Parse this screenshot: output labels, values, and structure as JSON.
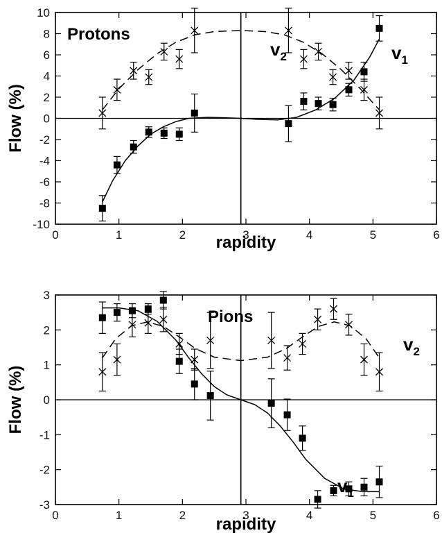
{
  "chart_data": [
    {
      "type": "scatter",
      "panel_label": "Protons",
      "xlabel": "rapidity",
      "ylabel": "Flow (%)",
      "xlim": [
        0,
        6
      ],
      "ylim": [
        -10,
        10
      ],
      "xticks": [
        0,
        1,
        2,
        3,
        4,
        5,
        6
      ],
      "yticks": [
        -10,
        -8,
        -6,
        -4,
        -2,
        0,
        2,
        4,
        6,
        8,
        10
      ],
      "grid": false,
      "reference_line_x": 2.92,
      "series": [
        {
          "name": "v1",
          "marker": "filled-square",
          "label_letter": "v",
          "label_sub": "1",
          "points": [
            {
              "x": 0.74,
              "y": -8.5,
              "err": 1.2
            },
            {
              "x": 0.97,
              "y": -4.4,
              "err": 0.8
            },
            {
              "x": 1.23,
              "y": -2.7,
              "err": 0.6
            },
            {
              "x": 1.47,
              "y": -1.3,
              "err": 0.5
            },
            {
              "x": 1.71,
              "y": -1.4,
              "err": 0.5
            },
            {
              "x": 1.95,
              "y": -1.5,
              "err": 0.6
            },
            {
              "x": 2.19,
              "y": 0.5,
              "err": 1.8
            },
            {
              "x": 3.67,
              "y": -0.5,
              "err": 1.7
            },
            {
              "x": 3.91,
              "y": 1.6,
              "err": 0.8
            },
            {
              "x": 4.14,
              "y": 1.4,
              "err": 0.6
            },
            {
              "x": 4.37,
              "y": 1.3,
              "err": 0.6
            },
            {
              "x": 4.62,
              "y": 2.7,
              "err": 0.6
            },
            {
              "x": 4.86,
              "y": 4.4,
              "err": 0.9
            },
            {
              "x": 5.1,
              "y": 8.5,
              "err": 1.2
            }
          ],
          "fit_style": "solid",
          "fit": [
            {
              "x": 0.74,
              "y": -7.9
            },
            {
              "x": 0.9,
              "y": -5.9
            },
            {
              "x": 1.1,
              "y": -4.0
            },
            {
              "x": 1.3,
              "y": -2.6
            },
            {
              "x": 1.5,
              "y": -1.5
            },
            {
              "x": 1.7,
              "y": -0.8
            },
            {
              "x": 1.9,
              "y": -0.3
            },
            {
              "x": 2.1,
              "y": 0.0
            },
            {
              "x": 2.4,
              "y": 0.1
            },
            {
              "x": 2.7,
              "y": 0.05
            },
            {
              "x": 2.92,
              "y": 0.0
            },
            {
              "x": 3.2,
              "y": -0.1
            },
            {
              "x": 3.5,
              "y": -0.15
            },
            {
              "x": 3.8,
              "y": 0.1
            },
            {
              "x": 4.1,
              "y": 0.8
            },
            {
              "x": 4.4,
              "y": 1.9
            },
            {
              "x": 4.7,
              "y": 3.6
            },
            {
              "x": 4.95,
              "y": 5.8
            },
            {
              "x": 5.1,
              "y": 7.5
            }
          ]
        },
        {
          "name": "v2",
          "marker": "x-cross",
          "label_letter": "v",
          "label_sub": "2",
          "points": [
            {
              "x": 0.74,
              "y": 0.5,
              "err": 1.5
            },
            {
              "x": 0.97,
              "y": 2.7,
              "err": 1.0
            },
            {
              "x": 1.23,
              "y": 4.5,
              "err": 0.8
            },
            {
              "x": 1.47,
              "y": 3.9,
              "err": 0.7
            },
            {
              "x": 1.71,
              "y": 6.3,
              "err": 0.8
            },
            {
              "x": 1.95,
              "y": 5.6,
              "err": 0.9
            },
            {
              "x": 2.19,
              "y": 8.3,
              "err": 2.1
            },
            {
              "x": 3.67,
              "y": 8.3,
              "err": 2.1
            },
            {
              "x": 3.91,
              "y": 5.6,
              "err": 0.9
            },
            {
              "x": 4.14,
              "y": 6.3,
              "err": 0.8
            },
            {
              "x": 4.37,
              "y": 3.9,
              "err": 0.7
            },
            {
              "x": 4.62,
              "y": 4.5,
              "err": 0.8
            },
            {
              "x": 4.86,
              "y": 2.7,
              "err": 1.0
            },
            {
              "x": 5.1,
              "y": 0.5,
              "err": 1.5
            }
          ],
          "fit_style": "dashed",
          "fit": [
            {
              "x": 0.74,
              "y": 0.8
            },
            {
              "x": 1.0,
              "y": 2.8
            },
            {
              "x": 1.3,
              "y": 4.6
            },
            {
              "x": 1.6,
              "y": 6.1
            },
            {
              "x": 1.9,
              "y": 7.2
            },
            {
              "x": 2.2,
              "y": 7.9
            },
            {
              "x": 2.5,
              "y": 8.2
            },
            {
              "x": 2.92,
              "y": 8.3
            },
            {
              "x": 3.3,
              "y": 8.2
            },
            {
              "x": 3.6,
              "y": 7.9
            },
            {
              "x": 3.9,
              "y": 7.2
            },
            {
              "x": 4.2,
              "y": 6.1
            },
            {
              "x": 4.5,
              "y": 4.6
            },
            {
              "x": 4.8,
              "y": 2.8
            },
            {
              "x": 5.1,
              "y": 0.8
            }
          ]
        }
      ]
    },
    {
      "type": "scatter",
      "panel_label": "Pions",
      "xlabel": "rapidity",
      "ylabel": "Flow (%)",
      "xlim": [
        0,
        6
      ],
      "ylim": [
        -3,
        3
      ],
      "xticks": [
        0,
        1,
        2,
        3,
        4,
        5,
        6
      ],
      "yticks": [
        -3,
        -2,
        -1,
        0,
        1,
        2,
        3
      ],
      "grid": false,
      "reference_line_x": 2.92,
      "series": [
        {
          "name": "v1",
          "marker": "filled-square",
          "label_letter": "v",
          "label_sub": "1",
          "points": [
            {
              "x": 0.74,
              "y": 2.35,
              "err": 0.45
            },
            {
              "x": 0.97,
              "y": 2.5,
              "err": 0.25
            },
            {
              "x": 1.21,
              "y": 2.55,
              "err": 0.2
            },
            {
              "x": 1.46,
              "y": 2.6,
              "err": 0.15
            },
            {
              "x": 1.7,
              "y": 2.85,
              "err": 0.25
            },
            {
              "x": 1.95,
              "y": 1.1,
              "err": 0.35
            },
            {
              "x": 2.19,
              "y": 0.45,
              "err": 0.45
            },
            {
              "x": 2.44,
              "y": 0.12,
              "err": 0.7
            },
            {
              "x": 3.4,
              "y": -0.1,
              "err": 0.7
            },
            {
              "x": 3.65,
              "y": -0.43,
              "err": 0.45
            },
            {
              "x": 3.89,
              "y": -1.1,
              "err": 0.35
            },
            {
              "x": 4.13,
              "y": -2.85,
              "err": 0.25
            },
            {
              "x": 4.38,
              "y": -2.6,
              "err": 0.15
            },
            {
              "x": 4.62,
              "y": -2.55,
              "err": 0.2
            },
            {
              "x": 4.86,
              "y": -2.5,
              "err": 0.25
            },
            {
              "x": 5.1,
              "y": -2.35,
              "err": 0.45
            }
          ],
          "fit_style": "solid",
          "fit": [
            {
              "x": 0.74,
              "y": 2.63
            },
            {
              "x": 1.0,
              "y": 2.63
            },
            {
              "x": 1.3,
              "y": 2.55
            },
            {
              "x": 1.6,
              "y": 2.25
            },
            {
              "x": 1.9,
              "y": 1.7
            },
            {
              "x": 2.1,
              "y": 1.2
            },
            {
              "x": 2.3,
              "y": 0.75
            },
            {
              "x": 2.5,
              "y": 0.38
            },
            {
              "x": 2.7,
              "y": 0.14
            },
            {
              "x": 2.92,
              "y": 0.0
            },
            {
              "x": 3.14,
              "y": -0.14
            },
            {
              "x": 3.34,
              "y": -0.38
            },
            {
              "x": 3.54,
              "y": -0.75
            },
            {
              "x": 3.74,
              "y": -1.2
            },
            {
              "x": 3.94,
              "y": -1.7
            },
            {
              "x": 4.24,
              "y": -2.25
            },
            {
              "x": 4.54,
              "y": -2.55
            },
            {
              "x": 4.84,
              "y": -2.63
            },
            {
              "x": 5.1,
              "y": -2.63
            }
          ]
        },
        {
          "name": "v2",
          "marker": "x-cross",
          "label_letter": "v",
          "label_sub": "2",
          "points": [
            {
              "x": 0.74,
              "y": 0.8,
              "err": 0.55
            },
            {
              "x": 0.97,
              "y": 1.15,
              "err": 0.45
            },
            {
              "x": 1.21,
              "y": 2.15,
              "err": 0.35
            },
            {
              "x": 1.46,
              "y": 2.2,
              "err": 0.3
            },
            {
              "x": 1.7,
              "y": 2.3,
              "err": 0.35
            },
            {
              "x": 1.95,
              "y": 1.6,
              "err": 0.3
            },
            {
              "x": 2.19,
              "y": 1.15,
              "err": 0.3
            },
            {
              "x": 2.44,
              "y": 1.7,
              "err": 0.8
            },
            {
              "x": 3.4,
              "y": 1.7,
              "err": 0.8
            },
            {
              "x": 3.65,
              "y": 1.2,
              "err": 0.35
            },
            {
              "x": 3.89,
              "y": 1.6,
              "err": 0.3
            },
            {
              "x": 4.13,
              "y": 2.3,
              "err": 0.3
            },
            {
              "x": 4.38,
              "y": 2.6,
              "err": 0.3
            },
            {
              "x": 4.62,
              "y": 2.15,
              "err": 0.3
            },
            {
              "x": 4.86,
              "y": 1.15,
              "err": 0.45
            },
            {
              "x": 5.1,
              "y": 0.8,
              "err": 0.55
            }
          ],
          "fit_style": "dashed",
          "fit": [
            {
              "x": 0.74,
              "y": 1.2
            },
            {
              "x": 0.95,
              "y": 1.75
            },
            {
              "x": 1.2,
              "y": 2.12
            },
            {
              "x": 1.45,
              "y": 2.23
            },
            {
              "x": 1.7,
              "y": 2.1
            },
            {
              "x": 1.95,
              "y": 1.8
            },
            {
              "x": 2.2,
              "y": 1.47
            },
            {
              "x": 2.5,
              "y": 1.22
            },
            {
              "x": 2.92,
              "y": 1.12
            },
            {
              "x": 3.34,
              "y": 1.22
            },
            {
              "x": 3.64,
              "y": 1.47
            },
            {
              "x": 3.89,
              "y": 1.8
            },
            {
              "x": 4.14,
              "y": 2.1
            },
            {
              "x": 4.39,
              "y": 2.23
            },
            {
              "x": 4.64,
              "y": 2.12
            },
            {
              "x": 4.89,
              "y": 1.75
            },
            {
              "x": 5.1,
              "y": 1.2
            }
          ]
        }
      ]
    }
  ]
}
